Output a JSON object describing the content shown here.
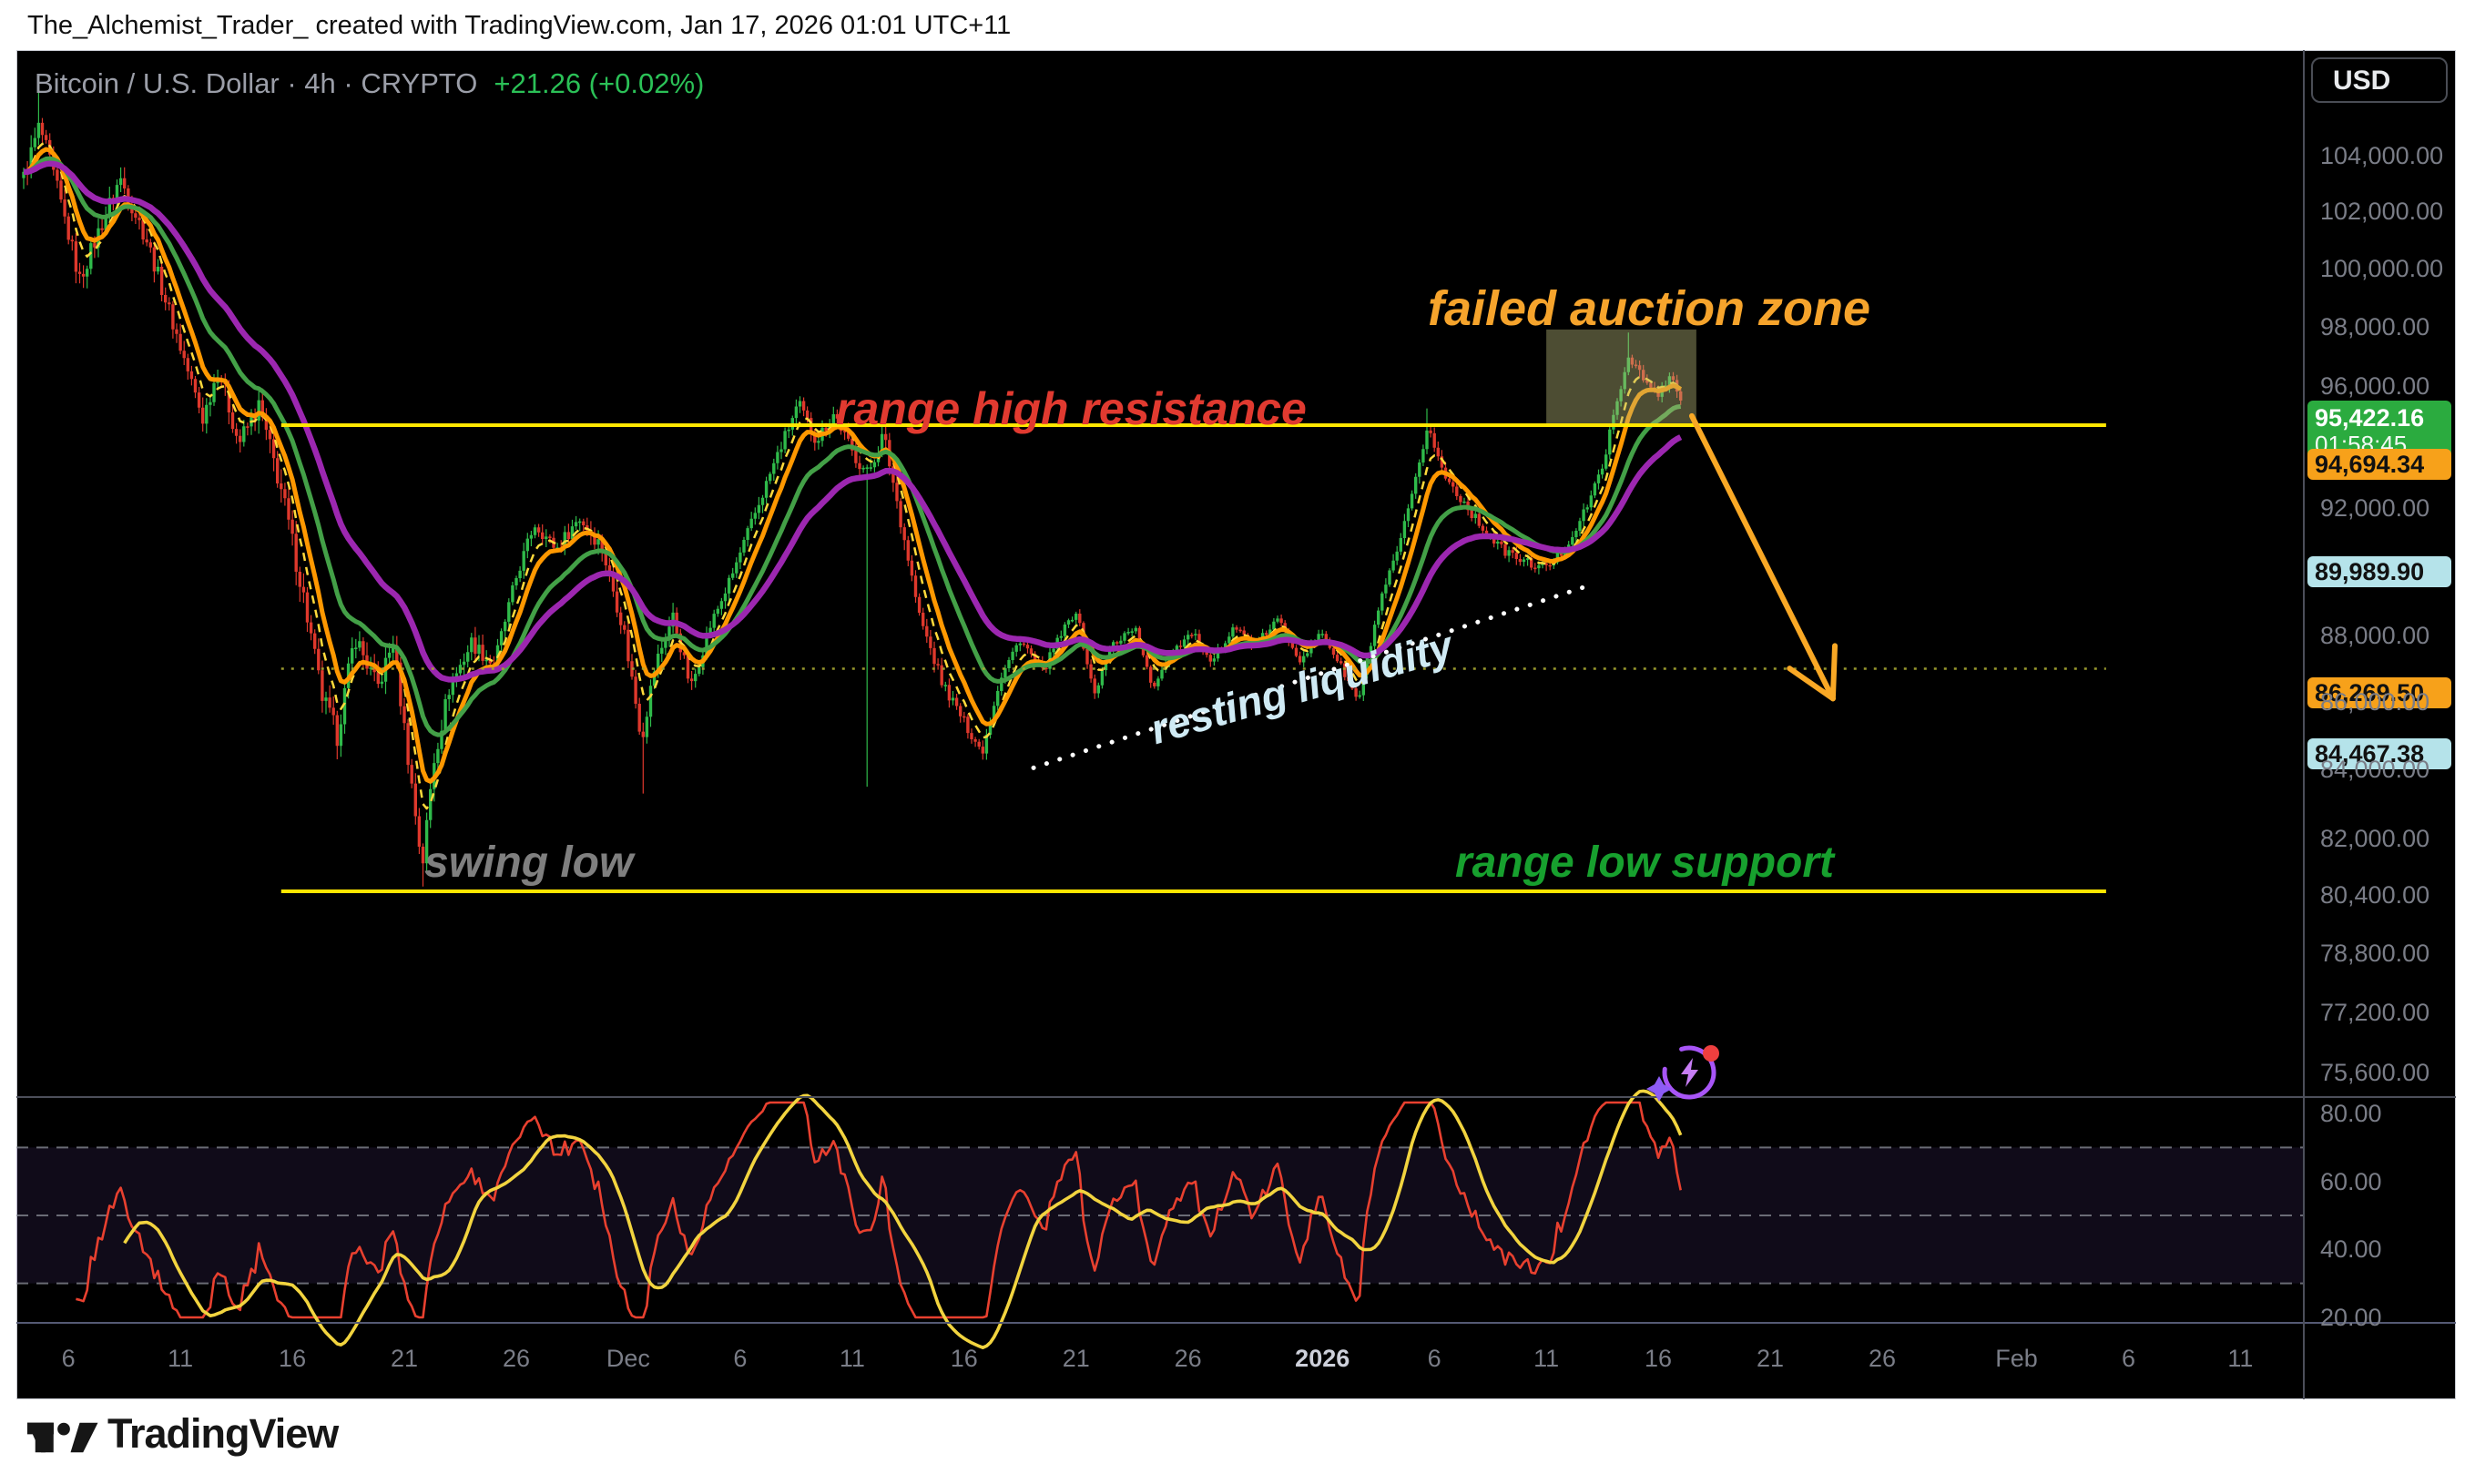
{
  "attribution": "The_Alchemist_Trader_ created with TradingView.com, Jan 17, 2026 01:01 UTC+11",
  "legend": {
    "title": "Bitcoin / U.S. Dollar · 4h · CRYPTO",
    "change": "+21.26 (+0.02%)",
    "change_color": "#2bc157"
  },
  "price_axis": {
    "currency_button": "USD",
    "labels": [
      {
        "text": "104,000.00",
        "price": 104000
      },
      {
        "text": "102,000.00",
        "price": 102000
      },
      {
        "text": "100,000.00",
        "price": 100000
      },
      {
        "text": "98,000.00",
        "price": 98000
      },
      {
        "text": "96,000.00",
        "price": 96000
      },
      {
        "text": "92,000.00",
        "price": 92000
      },
      {
        "text": "88,000.00",
        "price": 88000
      },
      {
        "text": "86,000.00",
        "price": 86000
      },
      {
        "text": "84,000.00",
        "price": 84000
      },
      {
        "text": "82,000.00",
        "price": 82000
      },
      {
        "text": "80,400.00",
        "price": 80400
      },
      {
        "text": "78,800.00",
        "price": 78800
      },
      {
        "text": "77,200.00",
        "price": 77200
      },
      {
        "text": "75,600.00",
        "price": 75600
      }
    ],
    "badges": [
      {
        "text": "95,422.16",
        "sub": "01:58:45",
        "price": 95422.16,
        "bg": "#2bab3f",
        "fg": "#ffffff",
        "kind": "last-price-countdown"
      },
      {
        "text": "94,694.34",
        "price": 94694.34,
        "bg": "#f7a11a",
        "fg": "#111111",
        "kind": "level"
      },
      {
        "text": "89,989.90",
        "price": 89989.9,
        "bg": "#b5e3ea",
        "fg": "#111111",
        "kind": "level"
      },
      {
        "text": "86,269.50",
        "price": 86269.5,
        "bg": "#f7a11a",
        "fg": "#111111",
        "kind": "level"
      },
      {
        "text": "84,467.38",
        "price": 84467.38,
        "bg": "#b5e3ea",
        "fg": "#111111",
        "kind": "level"
      }
    ]
  },
  "rsi_axis_labels": [
    {
      "text": "80.00",
      "value": 80
    },
    {
      "text": "60.00",
      "value": 60
    },
    {
      "text": "40.00",
      "value": 40
    },
    {
      "text": "20.00",
      "value": 20
    }
  ],
  "time_axis": [
    {
      "text": "6",
      "d": 2
    },
    {
      "text": "11",
      "d": 7
    },
    {
      "text": "16",
      "d": 12
    },
    {
      "text": "21",
      "d": 17
    },
    {
      "text": "26",
      "d": 22
    },
    {
      "text": "Dec",
      "d": 27
    },
    {
      "text": "6",
      "d": 32
    },
    {
      "text": "11",
      "d": 37
    },
    {
      "text": "16",
      "d": 42
    },
    {
      "text": "21",
      "d": 47
    },
    {
      "text": "26",
      "d": 52
    },
    {
      "text": "2026",
      "d": 58,
      "strong": true
    },
    {
      "text": "6",
      "d": 63
    },
    {
      "text": "11",
      "d": 68
    },
    {
      "text": "16",
      "d": 73
    },
    {
      "text": "21",
      "d": 78
    },
    {
      "text": "26",
      "d": 83
    },
    {
      "text": "Feb",
      "d": 89
    },
    {
      "text": "6",
      "d": 94
    },
    {
      "text": "11",
      "d": 99
    }
  ],
  "annotations": {
    "failed_auction_zone": {
      "text": "failed auction zone",
      "color": "#f6a42c"
    },
    "range_high_resistance": {
      "text": "range high resistance",
      "color": "#e13a30"
    },
    "swing_low": {
      "text": "swing low",
      "color": "#7f7f7f"
    },
    "range_low_support": {
      "text": "range low support",
      "color": "#17a02e"
    },
    "resting_liquidity": {
      "text": "resting liquidity",
      "color": "#cfeaf4"
    }
  },
  "footer": {
    "brand": "TradingView"
  },
  "chart_data": {
    "type": "candlestick",
    "symbol": "Bitcoin / U.S. Dollar",
    "interval": "4h",
    "scale": "log",
    "start_date": "2025-11-04",
    "ylim": [
      74950,
      107900
    ],
    "colors": {
      "candle_up": "#2fba4a",
      "candle_down": "#de382c",
      "ema_fast_dash": "#ffd93b",
      "ema_fast": "#ff9800",
      "ema_mid": "#43a047",
      "ema_slow": "#9c27b0",
      "level_line": "#ffe600",
      "mid_dotted": "#a8a832",
      "trendline": "#ffffff",
      "zone_fill": "#b8b87a",
      "arrow": "#f9a825",
      "rsi_line": "#e8402f",
      "rsi_ma": "#f2d43f",
      "rsi_band": "#7e57c2"
    },
    "price_waypoints": [
      [
        0,
        103200
      ],
      [
        0.7,
        105100
      ],
      [
        1.5,
        102800
      ],
      [
        2.5,
        99600
      ],
      [
        3.3,
        101200
      ],
      [
        4.3,
        103200
      ],
      [
        5.5,
        101000
      ],
      [
        7,
        97300
      ],
      [
        8,
        94900
      ],
      [
        8.7,
        96600
      ],
      [
        9.6,
        94100
      ],
      [
        10.5,
        95300
      ],
      [
        11.5,
        92600
      ],
      [
        12.5,
        89200
      ],
      [
        13.3,
        86200
      ],
      [
        14,
        85000
      ],
      [
        14.8,
        88000
      ],
      [
        15.8,
        86400
      ],
      [
        16.5,
        87800
      ],
      [
        17.2,
        84200
      ],
      [
        17.8,
        81200
      ],
      [
        18.3,
        84200
      ],
      [
        19,
        86400
      ],
      [
        20,
        87800
      ],
      [
        21,
        87100
      ],
      [
        22,
        89800
      ],
      [
        22.8,
        91500
      ],
      [
        23.8,
        90700
      ],
      [
        24.8,
        91700
      ],
      [
        25.8,
        90800
      ],
      [
        26.8,
        88200
      ],
      [
        27.6,
        84900
      ],
      [
        28.2,
        87100
      ],
      [
        29,
        88600
      ],
      [
        29.8,
        86400
      ],
      [
        30.6,
        88200
      ],
      [
        31.6,
        89800
      ],
      [
        32.6,
        91700
      ],
      [
        33.6,
        93600
      ],
      [
        34.6,
        95400
      ],
      [
        35.4,
        94200
      ],
      [
        36.2,
        95100
      ],
      [
        37,
        93800
      ],
      [
        37.7,
        93100
      ],
      [
        38.4,
        94400
      ],
      [
        39.2,
        91500
      ],
      [
        40,
        88600
      ],
      [
        41,
        86600
      ],
      [
        42,
        85400
      ],
      [
        42.8,
        84500
      ],
      [
        43.6,
        86700
      ],
      [
        44.5,
        87900
      ],
      [
        45.5,
        86900
      ],
      [
        46.3,
        88000
      ],
      [
        47,
        88800
      ],
      [
        47.8,
        86200
      ],
      [
        48.6,
        87700
      ],
      [
        49.6,
        88300
      ],
      [
        50.4,
        86400
      ],
      [
        51.2,
        87500
      ],
      [
        52.2,
        88100
      ],
      [
        53,
        87100
      ],
      [
        54,
        88300
      ],
      [
        55,
        87700
      ],
      [
        56,
        88500
      ],
      [
        57,
        87300
      ],
      [
        58,
        88100
      ],
      [
        58.8,
        87100
      ],
      [
        59.6,
        86000
      ],
      [
        60.5,
        88800
      ],
      [
        61.3,
        90500
      ],
      [
        62,
        92300
      ],
      [
        62.7,
        94700
      ],
      [
        63.4,
        93100
      ],
      [
        64.2,
        92300
      ],
      [
        65,
        91500
      ],
      [
        66,
        90700
      ],
      [
        67,
        90300
      ],
      [
        68,
        90100
      ],
      [
        68.8,
        90700
      ],
      [
        69.6,
        91700
      ],
      [
        70.4,
        93100
      ],
      [
        71,
        94900
      ],
      [
        71.7,
        97100
      ],
      [
        72.4,
        96100
      ],
      [
        73,
        95700
      ],
      [
        73.6,
        96300
      ],
      [
        74.04,
        95422
      ]
    ],
    "special_wicks": [
      {
        "d": 0.7,
        "high": 106800
      },
      {
        "d": 14,
        "low": 84300
      },
      {
        "d": 17.8,
        "low": 80650
      },
      {
        "d": 27.6,
        "low": 83300
      },
      {
        "d": 37.7,
        "low": 83500
      },
      {
        "d": 62.7,
        "high": 95250
      },
      {
        "d": 71.7,
        "high": 97800
      }
    ],
    "volatility_waypoints": [
      [
        0,
        1.6
      ],
      [
        8,
        1.4
      ],
      [
        12,
        1.9
      ],
      [
        19,
        1.5
      ],
      [
        23,
        1.0
      ],
      [
        27,
        1.5
      ],
      [
        31,
        1.0
      ],
      [
        36,
        1.1
      ],
      [
        39,
        1.3
      ],
      [
        43,
        0.8
      ],
      [
        59,
        0.65
      ],
      [
        61,
        0.9
      ],
      [
        64,
        0.8
      ],
      [
        70,
        0.8
      ],
      [
        72,
        1.0
      ],
      [
        74,
        0.9
      ]
    ],
    "emas": [
      {
        "period": 6,
        "style": "dashed",
        "width": 2.5,
        "color_key": "ema_fast_dash"
      },
      {
        "period": 10,
        "style": "solid",
        "width": 5,
        "color_key": "ema_fast"
      },
      {
        "period": 22,
        "style": "solid",
        "width": 5,
        "color_key": "ema_mid"
      },
      {
        "period": 40,
        "style": "solid",
        "width": 6.5,
        "color_key": "ema_slow"
      }
    ],
    "levels": {
      "range_high": {
        "price": 94694.34,
        "from_d": 11.5,
        "to_d": 93
      },
      "range_low": {
        "price": 80515,
        "from_d": 11.5,
        "to_d": 93
      },
      "mid_dotted": {
        "price": 87000,
        "from_d": 11.5,
        "to_d": 93
      }
    },
    "trendline": {
      "from": {
        "d": 45.1,
        "price": 84050
      },
      "to": {
        "d": 70.1,
        "price": 89600
      }
    },
    "zone_box": {
      "from_d": 68.0,
      "to_d": 74.7,
      "top_price": 97900,
      "bottom_price": 94694
    },
    "arrow": {
      "from": {
        "d": 74.5,
        "price": 95000
      },
      "to": {
        "d": 80.8,
        "price": 86100
      }
    },
    "rsi": {
      "period": 14,
      "ma_period": 14,
      "levels": [
        70,
        50,
        30
      ],
      "axis_range": [
        20,
        80
      ]
    }
  }
}
